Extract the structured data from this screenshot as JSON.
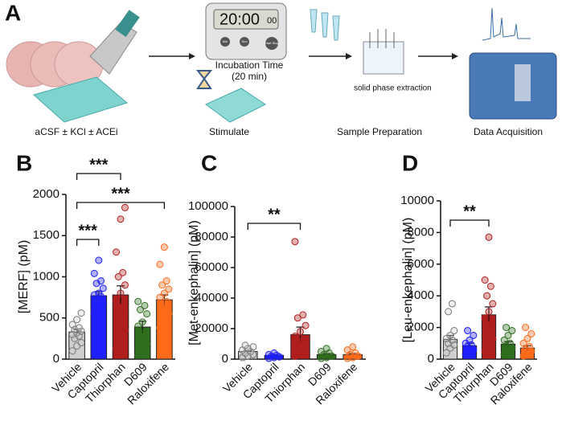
{
  "workflow": {
    "panel": "A",
    "slice_label": "aCSF ± KCl ± ACEi",
    "timer": "20:00",
    "timer_small": "00",
    "buttons": [
      "Min",
      "Sec",
      "Start Stop"
    ],
    "incubation": "Incubation Time",
    "incubation_time": "(20 min)",
    "stimulate": "Stimulate",
    "spe": "solid phase extraction",
    "sample_prep": "Sample Preparation",
    "data_acq": "Data Acquisition"
  },
  "chart_data": [
    {
      "type": "bar",
      "panel": "B",
      "y_label": "[MERF] (pM)",
      "categories": [
        "Vehicle",
        "Captopril",
        "Thiorphan",
        "D609",
        "Raloxifene"
      ],
      "colors": [
        "#cfcfcf",
        "#1f1fff",
        "#b01e1e",
        "#2e6e1c",
        "#ff6a1a"
      ],
      "values": [
        330,
        770,
        780,
        390,
        720
      ],
      "errors": [
        35,
        50,
        110,
        70,
        60
      ],
      "points": [
        [
          100,
          160,
          200,
          250,
          280,
          300,
          320,
          340,
          360,
          380,
          420,
          480,
          560
        ],
        [
          560,
          620,
          680,
          720,
          760,
          780,
          800,
          860,
          920,
          950,
          1040,
          1200
        ],
        [
          130,
          200,
          350,
          480,
          600,
          700,
          800,
          900,
          1000,
          1050,
          1300,
          1700,
          1840
        ],
        [
          50,
          120,
          180,
          250,
          320,
          400,
          450,
          550,
          600,
          650,
          700
        ],
        [
          380,
          480,
          550,
          600,
          700,
          750,
          800,
          850,
          900,
          950,
          1150,
          1360
        ]
      ],
      "ylim": [
        0,
        2000
      ],
      "yticks": [
        0,
        500,
        1000,
        1500,
        2000
      ],
      "annotations": [
        "***",
        "***",
        "***"
      ]
    },
    {
      "type": "bar",
      "panel": "C",
      "y_label": "[Met-enkephalin] (pM)",
      "categories": [
        "Vehicle",
        "Captopril",
        "Thiorphan",
        "D609",
        "Raloxifene"
      ],
      "colors": [
        "#cfcfcf",
        "#1f1fff",
        "#b01e1e",
        "#2e6e1c",
        "#ff6a1a"
      ],
      "values": [
        5000,
        2500,
        16000,
        3000,
        3000
      ],
      "errors": [
        700,
        400,
        5000,
        700,
        700
      ],
      "points": [
        [
          1000,
          2000,
          3000,
          4000,
          5000,
          6000,
          7000,
          8000,
          9000
        ],
        [
          500,
          1000,
          1500,
          2000,
          2500,
          3000,
          4000
        ],
        [
          2000,
          4000,
          6000,
          9000,
          12000,
          15000,
          18000,
          22000,
          27000,
          29000,
          77000
        ],
        [
          500,
          1000,
          2000,
          3000,
          4000,
          5000,
          7000
        ],
        [
          500,
          1000,
          2000,
          3000,
          4000,
          6000,
          8000
        ]
      ],
      "ylim": [
        0,
        100000
      ],
      "yticks": [
        0,
        20000,
        40000,
        60000,
        80000,
        100000
      ],
      "annotations": [
        "**"
      ]
    },
    {
      "type": "bar",
      "panel": "D",
      "y_label": "[Leu-enkephalin] (pM)",
      "categories": [
        "Vehicle",
        "Captopril",
        "Thiorphan",
        "D609",
        "Raloxifene"
      ],
      "colors": [
        "#cfcfcf",
        "#1f1fff",
        "#b01e1e",
        "#2e6e1c",
        "#ff6a1a"
      ],
      "values": [
        1250,
        850,
        2800,
        950,
        700
      ],
      "errors": [
        250,
        150,
        500,
        150,
        150
      ],
      "points": [
        [
          400,
          700,
          900,
          1000,
          1200,
          1300,
          1500,
          1800,
          3000,
          3500
        ],
        [
          300,
          500,
          600,
          800,
          900,
          1000,
          1200,
          1500,
          1800
        ],
        [
          500,
          900,
          1300,
          1800,
          2200,
          2600,
          3000,
          3500,
          4000,
          4600,
          5000,
          7700
        ],
        [
          300,
          500,
          700,
          800,
          1000,
          1200,
          1500,
          1800,
          2000
        ],
        [
          200,
          300,
          500,
          600,
          800,
          1000,
          1300,
          1600,
          2000
        ]
      ],
      "ylim": [
        0,
        10000
      ],
      "yticks": [
        0,
        2000,
        4000,
        6000,
        8000,
        10000
      ],
      "annotations": [
        "**"
      ]
    }
  ]
}
